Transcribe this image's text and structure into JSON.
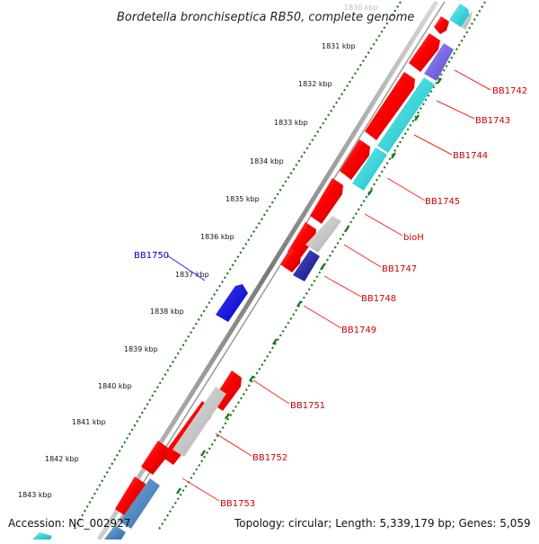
{
  "title": "Bordetella bronchiseptica RB50, complete genome",
  "footer": {
    "accession": "Accession: NC_002927",
    "topology": "Topology: circular; Length: 5,339,179 bp; Genes: 5,059"
  },
  "colors": {
    "forward_gene": "#ff0000",
    "reverse_gene": "#ff0000",
    "label_red": "#cc0000",
    "label_blue": "#0000cc",
    "backbone": "#888888",
    "ticks": "#1a7a1a"
  },
  "kbp_labels": [
    "1830 kbp",
    "1831 kbp",
    "1832 kbp",
    "1833 kbp",
    "1834 kbp",
    "1835 kbp",
    "1836 kbp",
    "1837 kbp",
    "1838 kbp",
    "1839 kbp",
    "1840 kbp",
    "1841 kbp",
    "1842 kbp",
    "1843 kbp"
  ],
  "gene_labels": [
    {
      "text": "BB1742",
      "color": "red"
    },
    {
      "text": "BB1743",
      "color": "red"
    },
    {
      "text": "BB1744",
      "color": "red"
    },
    {
      "text": "BB1745",
      "color": "red"
    },
    {
      "text": "bioH",
      "color": "red"
    },
    {
      "text": "BB1747",
      "color": "red"
    },
    {
      "text": "BB1748",
      "color": "red"
    },
    {
      "text": "BB1749",
      "color": "red"
    },
    {
      "text": "BB1750",
      "color": "blue"
    },
    {
      "text": "BB1751",
      "color": "red"
    },
    {
      "text": "BB1752",
      "color": "red"
    },
    {
      "text": "BB1753",
      "color": "red"
    }
  ]
}
